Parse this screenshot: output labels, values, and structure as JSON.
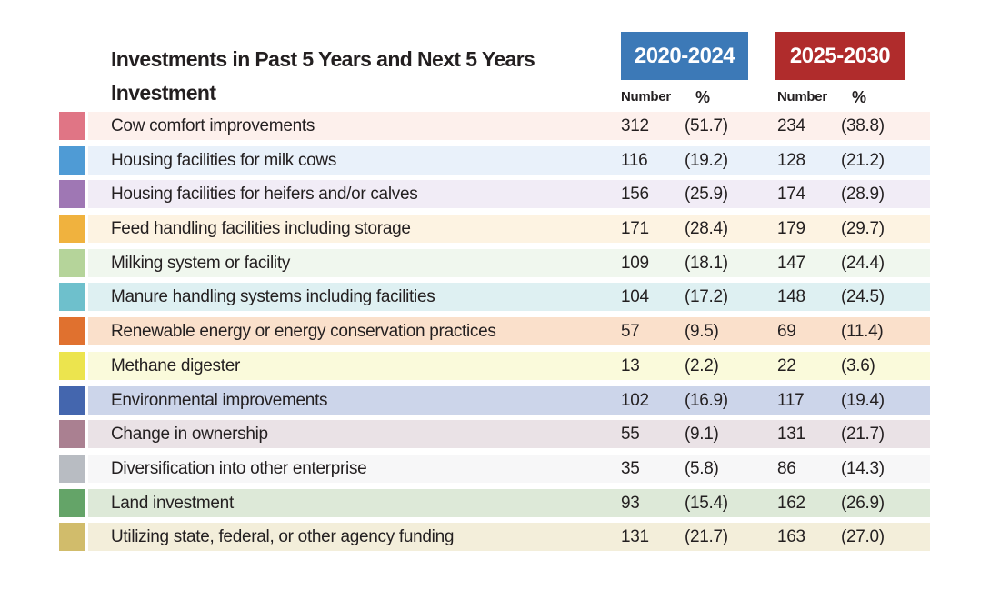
{
  "header": {
    "title": "Investments in Past 5 Years and Next 5 Years",
    "row_label": "Investment"
  },
  "columns": [
    {
      "label": "2020-2024",
      "color": "#3c79b7"
    },
    {
      "label": "2025-2030",
      "color": "#b02c2c"
    }
  ],
  "subheader": {
    "number": "Number",
    "percent": "%"
  },
  "rows": [
    {
      "label": "Cow comfort improvements",
      "swatch_color": "#e07585",
      "row_color": "#fdf0ec",
      "n1": "312",
      "p1": "(51.7)",
      "n2": "234",
      "p2": "(38.8)"
    },
    {
      "label": "Housing facilities for milk cows",
      "swatch_color": "#4f9bd5",
      "row_color": "#e9f1fa",
      "n1": "116",
      "p1": "(19.2)",
      "n2": "128",
      "p2": "(21.2)"
    },
    {
      "label": "Housing facilities for heifers and/or calves",
      "swatch_color": "#9f77b4",
      "row_color": "#f1ecf6",
      "n1": "156",
      "p1": "(25.9)",
      "n2": "174",
      "p2": "(28.9)"
    },
    {
      "label": "Feed handling facilities including storage",
      "swatch_color": "#f0b23e",
      "row_color": "#fdf3e2",
      "n1": "171",
      "p1": "(28.4)",
      "n2": "179",
      "p2": "(29.7)"
    },
    {
      "label": "Milking system or facility",
      "swatch_color": "#b5d49a",
      "row_color": "#f0f7ee",
      "n1": "109",
      "p1": "(18.1)",
      "n2": "147",
      "p2": "(24.4)"
    },
    {
      "label": "Manure handling systems including facilities",
      "swatch_color": "#6ec0cc",
      "row_color": "#def0f2",
      "n1": "104",
      "p1": "(17.2)",
      "n2": "148",
      "p2": "(24.5)"
    },
    {
      "label": "Renewable energy or energy conservation practices",
      "swatch_color": "#e0712f",
      "row_color": "#fae0cb",
      "n1": "57",
      "p1": "(9.5)",
      "n2": "69",
      "p2": "(11.4)"
    },
    {
      "label": "Methane digester",
      "swatch_color": "#ece44e",
      "row_color": "#fafadb",
      "n1": "13",
      "p1": "(2.2)",
      "n2": "22",
      "p2": "(3.6)"
    },
    {
      "label": "Environmental improvements",
      "swatch_color": "#4466ae",
      "row_color": "#ccd5ea",
      "n1": "102",
      "p1": "(16.9)",
      "n2": "117",
      "p2": "(19.4)"
    },
    {
      "label": "Change in ownership",
      "swatch_color": "#aa8091",
      "row_color": "#eae2e6",
      "n1": "55",
      "p1": "(9.1)",
      "n2": "131",
      "p2": "(21.7)"
    },
    {
      "label": "Diversification into other enterprise",
      "swatch_color": "#b8bcc2",
      "row_color": "#f7f7f8",
      "n1": "35",
      "p1": "(5.8)",
      "n2": "86",
      "p2": "(14.3)"
    },
    {
      "label": "Land investment",
      "swatch_color": "#64a468",
      "row_color": "#dde9d8",
      "n1": "93",
      "p1": "(15.4)",
      "n2": "162",
      "p2": "(26.9)"
    },
    {
      "label": "Utilizing state, federal, or other agency funding",
      "swatch_color": "#d1bc6b",
      "row_color": "#f3eeda",
      "n1": "131",
      "p1": "(21.7)",
      "n2": "163",
      "p2": "(27.0)"
    }
  ],
  "chart_data": {
    "type": "table",
    "title": "Investments in Past 5 Years and Next 5 Years",
    "row_header": "Investment",
    "column_groups": [
      "2020-2024",
      "2025-2030"
    ],
    "sub_columns": [
      "Number",
      "%"
    ],
    "rows": [
      {
        "label": "Cow comfort improvements",
        "past_number": 312,
        "past_pct": 51.7,
        "next_number": 234,
        "next_pct": 38.8
      },
      {
        "label": "Housing facilities for milk cows",
        "past_number": 116,
        "past_pct": 19.2,
        "next_number": 128,
        "next_pct": 21.2
      },
      {
        "label": "Housing facilities for heifers and/or calves",
        "past_number": 156,
        "past_pct": 25.9,
        "next_number": 174,
        "next_pct": 28.9
      },
      {
        "label": "Feed handling facilities including storage",
        "past_number": 171,
        "past_pct": 28.4,
        "next_number": 179,
        "next_pct": 29.7
      },
      {
        "label": "Milking system or facility",
        "past_number": 109,
        "past_pct": 18.1,
        "next_number": 147,
        "next_pct": 24.4
      },
      {
        "label": "Manure handling systems including facilities",
        "past_number": 104,
        "past_pct": 17.2,
        "next_number": 148,
        "next_pct": 24.5
      },
      {
        "label": "Renewable energy or energy conservation practices",
        "past_number": 57,
        "past_pct": 9.5,
        "next_number": 69,
        "next_pct": 11.4
      },
      {
        "label": "Methane digester",
        "past_number": 13,
        "past_pct": 2.2,
        "next_number": 22,
        "next_pct": 3.6
      },
      {
        "label": "Environmental improvements",
        "past_number": 102,
        "past_pct": 16.9,
        "next_number": 117,
        "next_pct": 19.4
      },
      {
        "label": "Change in ownership",
        "past_number": 55,
        "past_pct": 9.1,
        "next_number": 131,
        "next_pct": 21.7
      },
      {
        "label": "Diversification into other enterprise",
        "past_number": 35,
        "past_pct": 5.8,
        "next_number": 86,
        "next_pct": 14.3
      },
      {
        "label": "Land investment",
        "past_number": 93,
        "past_pct": 15.4,
        "next_number": 162,
        "next_pct": 26.9
      },
      {
        "label": "Utilizing state, federal, or other agency funding",
        "past_number": 131,
        "past_pct": 21.7,
        "next_number": 163,
        "next_pct": 27.0
      }
    ]
  }
}
